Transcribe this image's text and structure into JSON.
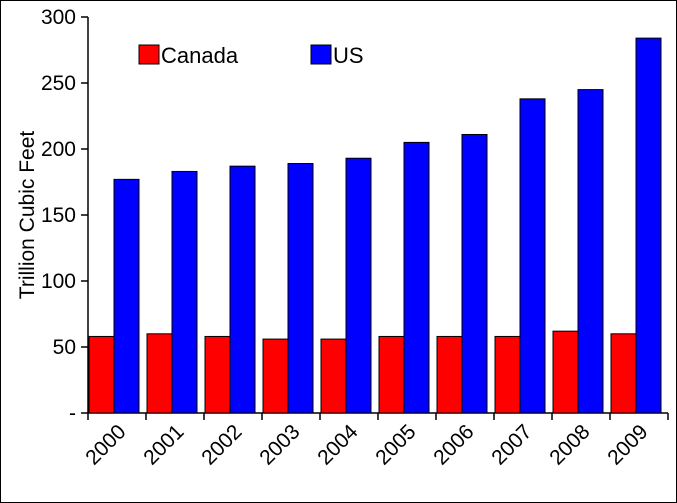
{
  "chart_data": {
    "type": "bar",
    "title": "",
    "xlabel": "",
    "ylabel": "Trillion Cubic Feet",
    "categories": [
      "2000",
      "2001",
      "2002",
      "2003",
      "2004",
      "2005",
      "2006",
      "2007",
      "2008",
      "2009"
    ],
    "series": [
      {
        "name": "Canada",
        "color": "#ff0000",
        "values": [
          58,
          60,
          58,
          56,
          56,
          58,
          58,
          58,
          62,
          60
        ]
      },
      {
        "name": "US",
        "color": "#0000ff",
        "values": [
          177,
          183,
          187,
          189,
          193,
          205,
          211,
          238,
          245,
          284
        ]
      }
    ],
    "ylim": [
      0,
      300
    ],
    "yticks": [
      {
        "value": 0,
        "label": "-"
      },
      {
        "value": 50,
        "label": "50"
      },
      {
        "value": 100,
        "label": "100"
      },
      {
        "value": 150,
        "label": "150"
      },
      {
        "value": 200,
        "label": "200"
      },
      {
        "value": 250,
        "label": "250"
      },
      {
        "value": 300,
        "label": "300"
      }
    ],
    "grid": false,
    "legend_position": "top-left"
  }
}
